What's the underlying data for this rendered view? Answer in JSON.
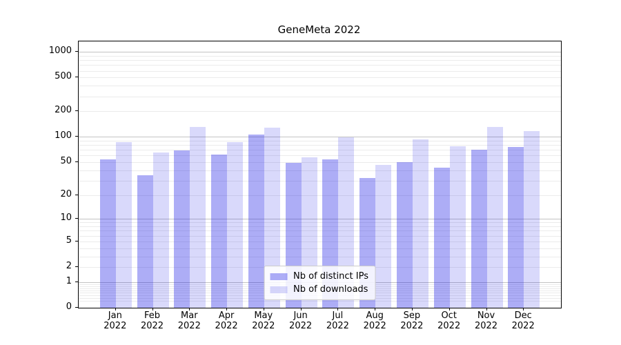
{
  "chart_data": {
    "type": "bar",
    "title": "GeneMeta 2022",
    "yscale": "log1p",
    "ylim": [
      0,
      1330
    ],
    "categories": [
      "Jan",
      "Feb",
      "Mar",
      "Apr",
      "May",
      "Jun",
      "Jul",
      "Aug",
      "Sep",
      "Oct",
      "Nov",
      "Dec"
    ],
    "x_tick_year": "2022",
    "series": [
      {
        "name": "Nb of distinct IPs",
        "color": "rgba(20,20,230,0.35)",
        "values": [
          54,
          35,
          69,
          62,
          107,
          49,
          54,
          32,
          50,
          43,
          71,
          76
        ]
      },
      {
        "name": "Nb of downloads",
        "color": "rgba(20,20,230,0.16)",
        "values": [
          87,
          65,
          131,
          86,
          129,
          57,
          98,
          46,
          93,
          77,
          132,
          118
        ]
      }
    ],
    "yticks": [
      0,
      1,
      2,
      5,
      10,
      20,
      50,
      100,
      200,
      500,
      1000
    ],
    "major_gridlines": [
      1,
      10,
      100,
      1000
    ],
    "minor_gridlines": [
      0.2,
      0.3,
      0.4,
      0.5,
      0.6,
      0.7,
      0.8,
      0.9,
      2,
      3,
      4,
      5,
      6,
      7,
      8,
      9,
      20,
      30,
      40,
      50,
      60,
      70,
      80,
      90,
      200,
      300,
      400,
      500,
      600,
      700,
      800,
      900
    ],
    "legend_position": "lower center",
    "grid": true,
    "colors": {
      "major_grid": "#c3c3c3",
      "minor_grid": "#ebebeb",
      "spine": "#000000",
      "background": "#ffffff"
    }
  }
}
